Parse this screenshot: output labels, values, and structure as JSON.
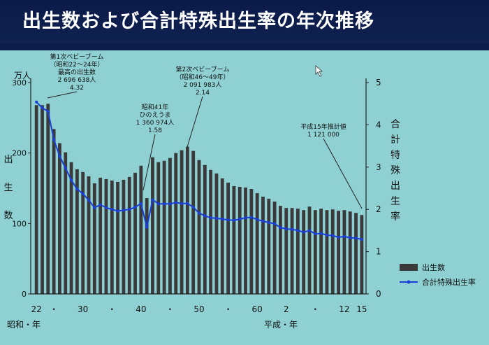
{
  "title": "出生数および合計特殊出生率の年次推移",
  "chart_data": {
    "type": "bar+line",
    "left_axis": {
      "unit": "万人",
      "label": "出生数",
      "min": 0,
      "max": 300,
      "ticks": [
        0,
        100,
        200,
        300
      ]
    },
    "right_axis": {
      "label": "合計特殊出生率",
      "min": 0,
      "max": 5,
      "ticks": [
        0,
        1,
        2,
        3,
        4,
        5
      ]
    },
    "x_tick_labels": [
      {
        "label": "22",
        "year": 1947
      },
      {
        "label": "・",
        "year": 1950
      },
      {
        "label": "30",
        "year": 1955
      },
      {
        "label": "・",
        "year": 1960
      },
      {
        "label": "40",
        "year": 1965
      },
      {
        "label": "・",
        "year": 1970
      },
      {
        "label": "50",
        "year": 1975
      },
      {
        "label": "・",
        "year": 1980
      },
      {
        "label": "60",
        "year": 1985
      },
      {
        "label": "2",
        "year": 1990
      },
      {
        "label": "・",
        "year": 1995
      },
      {
        "label": "12",
        "year": 2000
      },
      {
        "label": "15",
        "year": 2003
      }
    ],
    "era_labels": {
      "showa": "昭和・年",
      "heisei": "平成・年"
    },
    "years": [
      1947,
      1948,
      1949,
      1950,
      1951,
      1952,
      1953,
      1954,
      1955,
      1956,
      1957,
      1958,
      1959,
      1960,
      1961,
      1962,
      1963,
      1964,
      1965,
      1966,
      1967,
      1968,
      1969,
      1970,
      1971,
      1972,
      1973,
      1974,
      1975,
      1976,
      1977,
      1978,
      1979,
      1980,
      1981,
      1982,
      1983,
      1984,
      1985,
      1986,
      1987,
      1988,
      1989,
      1990,
      1991,
      1992,
      1993,
      1994,
      1995,
      1996,
      1997,
      1998,
      1999,
      2000,
      2001,
      2002,
      2003
    ],
    "series": [
      {
        "name": "出生数",
        "type": "bar",
        "axis": "left",
        "color": "#3a3a3a",
        "values": [
          268,
          268,
          270,
          234,
          214,
          201,
          187,
          177,
          173,
          167,
          157,
          165,
          163,
          161,
          159,
          162,
          166,
          172,
          182,
          136,
          194,
          187,
          189,
          193,
          200,
          204,
          209,
          203,
          190,
          183,
          176,
          171,
          164,
          158,
          153,
          152,
          151,
          149,
          143,
          138,
          135,
          131,
          125,
          122,
          122,
          121,
          119,
          124,
          119,
          121,
          119,
          120,
          118,
          119,
          117,
          115,
          112
        ]
      },
      {
        "name": "合計特殊出生率",
        "type": "line",
        "axis": "right",
        "color": "#1a3fd6",
        "values": [
          4.54,
          4.4,
          4.32,
          3.65,
          3.26,
          2.98,
          2.69,
          2.48,
          2.37,
          2.22,
          2.04,
          2.11,
          2.04,
          2.0,
          1.96,
          1.98,
          2.0,
          2.05,
          2.14,
          1.58,
          2.23,
          2.13,
          2.13,
          2.13,
          2.16,
          2.14,
          2.14,
          2.05,
          1.91,
          1.85,
          1.8,
          1.79,
          1.77,
          1.75,
          1.74,
          1.77,
          1.8,
          1.81,
          1.76,
          1.72,
          1.69,
          1.66,
          1.57,
          1.54,
          1.53,
          1.5,
          1.46,
          1.5,
          1.42,
          1.43,
          1.39,
          1.38,
          1.34,
          1.36,
          1.33,
          1.32,
          1.29
        ]
      }
    ],
    "legend": {
      "position": "bottom-right",
      "entries": [
        {
          "label": "出生数",
          "kind": "bar"
        },
        {
          "label": "合計特殊出生率",
          "kind": "line"
        }
      ]
    },
    "annotations": [
      {
        "id": "boom1",
        "lines": [
          "第1次ベビーブーム",
          "（昭和22〜24年）",
          "最高の出生数",
          "2 696 638人",
          "4.32"
        ],
        "year": 1949
      },
      {
        "id": "hinoeuma",
        "lines": [
          "昭和41年",
          "ひのえうま",
          "1 360 974人",
          "1.58"
        ],
        "year": 1966
      },
      {
        "id": "boom2",
        "lines": [
          "第2次ベビーブーム",
          "（昭和46〜49年）",
          "2 091 983人",
          "2.14"
        ],
        "year": 1973
      },
      {
        "id": "h15",
        "lines": [
          "平成15年推計値",
          "1 121 000"
        ],
        "year": 2003
      }
    ]
  }
}
